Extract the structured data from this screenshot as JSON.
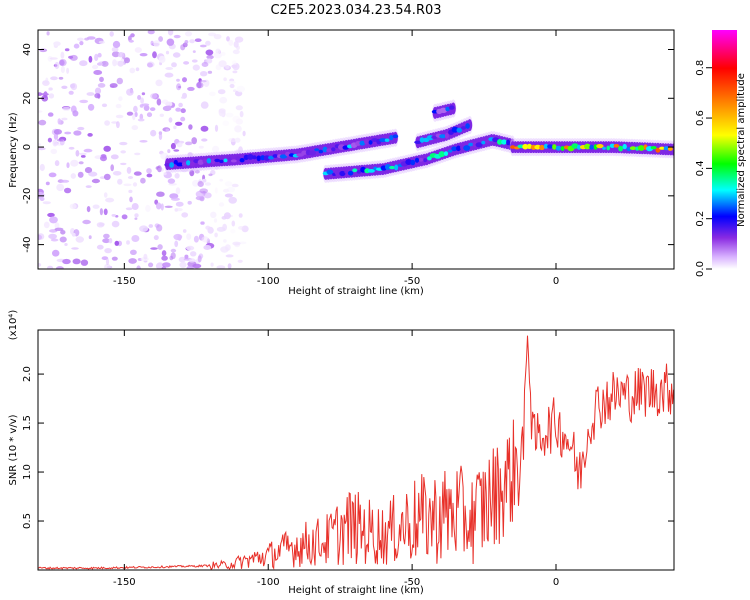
{
  "title": "C2E5.2023.034.23.54.R03",
  "chart_data": [
    {
      "type": "heatmap",
      "title": "C2E5.2023.034.23.54.R03",
      "xlabel": "Height of straight line (km)",
      "ylabel": "Frequency (Hz)",
      "xlim": [
        -180,
        41
      ],
      "ylim": [
        -50,
        48
      ],
      "xticks": [
        -150,
        -100,
        -50,
        0
      ],
      "yticks": [
        40,
        20,
        0,
        -20,
        -40
      ],
      "colorbar": {
        "label": "Normalized spectral amplitude",
        "range": [
          0,
          0.95
        ],
        "ticks": [
          "0.0",
          "0.2",
          "0.4",
          "0.6",
          "0.8"
        ],
        "colors": [
          "#ffffff",
          "#d9b3ff",
          "#8a2be2",
          "#0000ff",
          "#00ffff",
          "#00ff00",
          "#ffff00",
          "#ff8000",
          "#ff0000",
          "#ff00ff"
        ]
      },
      "features": [
        {
          "name": "broadband noise region",
          "x_range": [
            -180,
            -120
          ],
          "y_range": [
            -50,
            48
          ],
          "amplitude": 0.1
        },
        {
          "name": "main band",
          "points": [
            [
              -135,
              -7
            ],
            [
              -110,
              -5
            ],
            [
              -90,
              -3
            ],
            [
              -70,
              1
            ],
            [
              -55,
              4
            ]
          ],
          "amplitude": 0.35
        },
        {
          "name": "lower branch",
          "points": [
            [
              -80,
              -11
            ],
            [
              -60,
              -9
            ],
            [
              -45,
              -5
            ],
            [
              -35,
              -1
            ],
            [
              -22,
              3
            ],
            [
              -15,
              1
            ]
          ],
          "amplitude": 0.4
        },
        {
          "name": "upper branch",
          "points": [
            [
              -48,
              2
            ],
            [
              -38,
              5
            ],
            [
              -30,
              9
            ]
          ],
          "amplitude": 0.35
        },
        {
          "name": "high-frequency patch",
          "points": [
            [
              -42,
              14
            ],
            [
              -35,
              16
            ]
          ],
          "amplitude": 0.3
        },
        {
          "name": "terminal band",
          "points": [
            [
              -15,
              0
            ],
            [
              0,
              0
            ],
            [
              20,
              0
            ],
            [
              41,
              -1
            ]
          ],
          "amplitude": 0.65
        }
      ]
    },
    {
      "type": "line",
      "xlabel": "Height of straight line (km)",
      "ylabel": "SNR (10 * v/v)",
      "y_multiplier": "(x10⁴)",
      "xlim": [
        -180,
        41
      ],
      "ylim": [
        0,
        2.45
      ],
      "xticks": [
        -150,
        -100,
        -50,
        0
      ],
      "yticks": [
        0.5,
        1.0,
        1.5,
        2.0
      ],
      "color": "#e8312a",
      "series": [
        {
          "x": [
            -180,
            -160,
            -140,
            -125,
            -115,
            -110,
            -100,
            -90,
            -80,
            -72,
            -60,
            -50,
            -40,
            -35,
            -30,
            -25,
            -20,
            -15,
            -11,
            -10,
            -8,
            -5,
            0,
            5,
            8,
            10,
            12,
            15,
            18,
            22,
            25,
            30,
            35,
            41
          ],
          "y": [
            0.02,
            0.02,
            0.03,
            0.04,
            0.05,
            0.08,
            0.15,
            0.25,
            0.3,
            0.45,
            0.35,
            0.5,
            0.55,
            0.6,
            0.5,
            0.65,
            0.8,
            1.0,
            1.25,
            2.45,
            1.3,
            1.4,
            1.5,
            1.3,
            0.95,
            1.25,
            1.55,
            1.7,
            1.75,
            1.8,
            1.78,
            1.82,
            1.84,
            1.85
          ]
        }
      ]
    }
  ]
}
